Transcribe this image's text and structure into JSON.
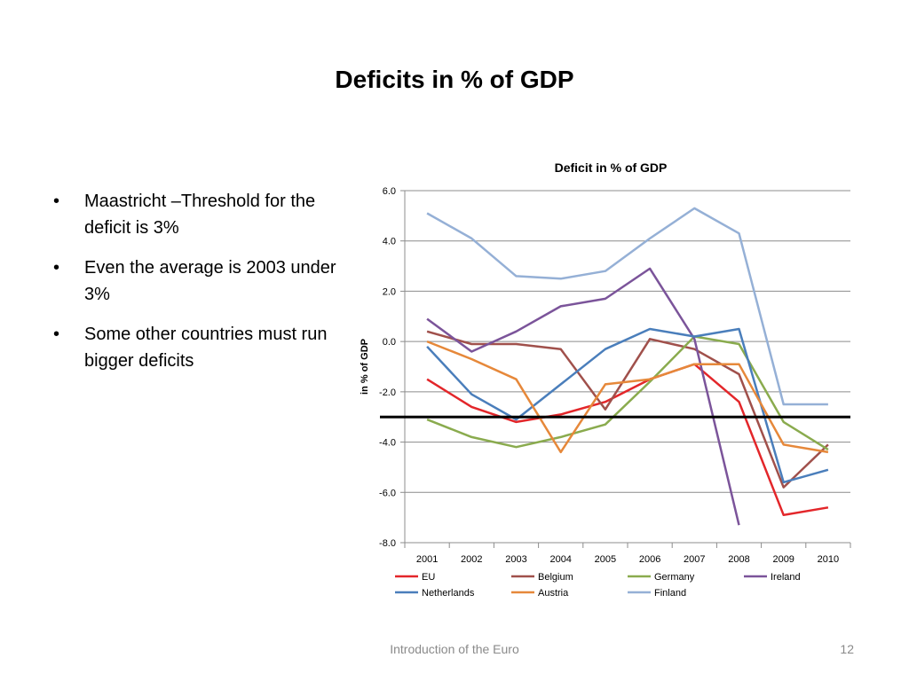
{
  "slide": {
    "title": "Deficits in % of GDP",
    "bullets": [
      "Maastricht –Threshold for the deficit is 3%",
      "Even the average is 2003 under 3%",
      "Some other countries must run bigger deficits"
    ],
    "bullet_glyph": "•",
    "footer": "Introduction of the Euro",
    "page_number": "12"
  },
  "chart_data": {
    "type": "line",
    "title": "Deficit in % of GDP",
    "xlabel": "",
    "ylabel": "in % of GDP",
    "categories": [
      "2001",
      "2002",
      "2003",
      "2004",
      "2005",
      "2006",
      "2007",
      "2008",
      "2009",
      "2010"
    ],
    "ylim": [
      -8,
      6
    ],
    "yticks": [
      "6.0",
      "4.0",
      "2.0",
      "0.0",
      "-2.0",
      "-4.0",
      "-6.0",
      "-8.0"
    ],
    "ytick_values": [
      6,
      4,
      2,
      0,
      -2,
      -4,
      -6,
      -8
    ],
    "grid": true,
    "legend_position": "bottom",
    "threshold": {
      "value": -3,
      "color": "#000000"
    },
    "series": [
      {
        "name": "EU",
        "color": "#e3262a",
        "values": [
          -1.5,
          -2.6,
          -3.2,
          -2.9,
          -2.4,
          -1.5,
          -0.9,
          -2.4,
          -6.9,
          -6.6
        ]
      },
      {
        "name": "Belgium",
        "color": "#a0504b",
        "values": [
          0.4,
          -0.1,
          -0.1,
          -0.3,
          -2.7,
          0.1,
          -0.3,
          -1.3,
          -5.8,
          -4.1
        ]
      },
      {
        "name": "Germany",
        "color": "#8aab4e",
        "values": [
          -3.1,
          -3.8,
          -4.2,
          -3.8,
          -3.3,
          -1.6,
          0.2,
          -0.1,
          -3.2,
          -4.3
        ]
      },
      {
        "name": "Ireland",
        "color": "#7b549a",
        "values": [
          0.9,
          -0.4,
          0.4,
          1.4,
          1.7,
          2.9,
          0.1,
          -7.3,
          null,
          null
        ]
      },
      {
        "name": "Netherlands",
        "color": "#4a7ebb",
        "values": [
          -0.2,
          -2.1,
          -3.1,
          -1.7,
          -0.3,
          0.5,
          0.2,
          0.5,
          -5.6,
          -5.1
        ]
      },
      {
        "name": "Austria",
        "color": "#e6883a",
        "values": [
          0.0,
          -0.7,
          -1.5,
          -4.4,
          -1.7,
          -1.5,
          -0.9,
          -0.9,
          -4.1,
          -4.4
        ]
      },
      {
        "name": "Finland",
        "color": "#95b0d6",
        "values": [
          5.1,
          4.1,
          2.6,
          2.5,
          2.8,
          4.1,
          5.3,
          4.3,
          -2.5,
          -2.5
        ]
      }
    ]
  }
}
